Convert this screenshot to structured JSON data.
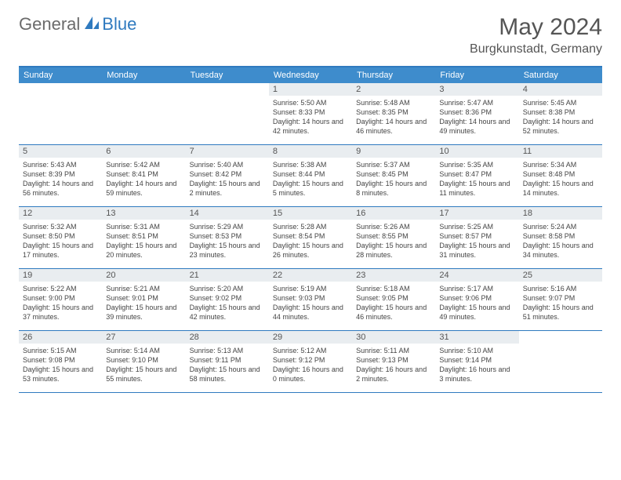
{
  "logo": {
    "part1": "General",
    "part2": "Blue"
  },
  "title": "May 2024",
  "location": "Burgkunstadt, Germany",
  "colors": {
    "header_bg": "#3e8ccc",
    "border": "#2f7abf",
    "daynum_bg": "#e9edf0",
    "text": "#555555"
  },
  "dayheads": [
    "Sunday",
    "Monday",
    "Tuesday",
    "Wednesday",
    "Thursday",
    "Friday",
    "Saturday"
  ],
  "weeks": [
    [
      {
        "n": "",
        "sr": "",
        "ss": "",
        "dl": ""
      },
      {
        "n": "",
        "sr": "",
        "ss": "",
        "dl": ""
      },
      {
        "n": "",
        "sr": "",
        "ss": "",
        "dl": ""
      },
      {
        "n": "1",
        "sr": "Sunrise: 5:50 AM",
        "ss": "Sunset: 8:33 PM",
        "dl": "Daylight: 14 hours and 42 minutes."
      },
      {
        "n": "2",
        "sr": "Sunrise: 5:48 AM",
        "ss": "Sunset: 8:35 PM",
        "dl": "Daylight: 14 hours and 46 minutes."
      },
      {
        "n": "3",
        "sr": "Sunrise: 5:47 AM",
        "ss": "Sunset: 8:36 PM",
        "dl": "Daylight: 14 hours and 49 minutes."
      },
      {
        "n": "4",
        "sr": "Sunrise: 5:45 AM",
        "ss": "Sunset: 8:38 PM",
        "dl": "Daylight: 14 hours and 52 minutes."
      }
    ],
    [
      {
        "n": "5",
        "sr": "Sunrise: 5:43 AM",
        "ss": "Sunset: 8:39 PM",
        "dl": "Daylight: 14 hours and 56 minutes."
      },
      {
        "n": "6",
        "sr": "Sunrise: 5:42 AM",
        "ss": "Sunset: 8:41 PM",
        "dl": "Daylight: 14 hours and 59 minutes."
      },
      {
        "n": "7",
        "sr": "Sunrise: 5:40 AM",
        "ss": "Sunset: 8:42 PM",
        "dl": "Daylight: 15 hours and 2 minutes."
      },
      {
        "n": "8",
        "sr": "Sunrise: 5:38 AM",
        "ss": "Sunset: 8:44 PM",
        "dl": "Daylight: 15 hours and 5 minutes."
      },
      {
        "n": "9",
        "sr": "Sunrise: 5:37 AM",
        "ss": "Sunset: 8:45 PM",
        "dl": "Daylight: 15 hours and 8 minutes."
      },
      {
        "n": "10",
        "sr": "Sunrise: 5:35 AM",
        "ss": "Sunset: 8:47 PM",
        "dl": "Daylight: 15 hours and 11 minutes."
      },
      {
        "n": "11",
        "sr": "Sunrise: 5:34 AM",
        "ss": "Sunset: 8:48 PM",
        "dl": "Daylight: 15 hours and 14 minutes."
      }
    ],
    [
      {
        "n": "12",
        "sr": "Sunrise: 5:32 AM",
        "ss": "Sunset: 8:50 PM",
        "dl": "Daylight: 15 hours and 17 minutes."
      },
      {
        "n": "13",
        "sr": "Sunrise: 5:31 AM",
        "ss": "Sunset: 8:51 PM",
        "dl": "Daylight: 15 hours and 20 minutes."
      },
      {
        "n": "14",
        "sr": "Sunrise: 5:29 AM",
        "ss": "Sunset: 8:53 PM",
        "dl": "Daylight: 15 hours and 23 minutes."
      },
      {
        "n": "15",
        "sr": "Sunrise: 5:28 AM",
        "ss": "Sunset: 8:54 PM",
        "dl": "Daylight: 15 hours and 26 minutes."
      },
      {
        "n": "16",
        "sr": "Sunrise: 5:26 AM",
        "ss": "Sunset: 8:55 PM",
        "dl": "Daylight: 15 hours and 28 minutes."
      },
      {
        "n": "17",
        "sr": "Sunrise: 5:25 AM",
        "ss": "Sunset: 8:57 PM",
        "dl": "Daylight: 15 hours and 31 minutes."
      },
      {
        "n": "18",
        "sr": "Sunrise: 5:24 AM",
        "ss": "Sunset: 8:58 PM",
        "dl": "Daylight: 15 hours and 34 minutes."
      }
    ],
    [
      {
        "n": "19",
        "sr": "Sunrise: 5:22 AM",
        "ss": "Sunset: 9:00 PM",
        "dl": "Daylight: 15 hours and 37 minutes."
      },
      {
        "n": "20",
        "sr": "Sunrise: 5:21 AM",
        "ss": "Sunset: 9:01 PM",
        "dl": "Daylight: 15 hours and 39 minutes."
      },
      {
        "n": "21",
        "sr": "Sunrise: 5:20 AM",
        "ss": "Sunset: 9:02 PM",
        "dl": "Daylight: 15 hours and 42 minutes."
      },
      {
        "n": "22",
        "sr": "Sunrise: 5:19 AM",
        "ss": "Sunset: 9:03 PM",
        "dl": "Daylight: 15 hours and 44 minutes."
      },
      {
        "n": "23",
        "sr": "Sunrise: 5:18 AM",
        "ss": "Sunset: 9:05 PM",
        "dl": "Daylight: 15 hours and 46 minutes."
      },
      {
        "n": "24",
        "sr": "Sunrise: 5:17 AM",
        "ss": "Sunset: 9:06 PM",
        "dl": "Daylight: 15 hours and 49 minutes."
      },
      {
        "n": "25",
        "sr": "Sunrise: 5:16 AM",
        "ss": "Sunset: 9:07 PM",
        "dl": "Daylight: 15 hours and 51 minutes."
      }
    ],
    [
      {
        "n": "26",
        "sr": "Sunrise: 5:15 AM",
        "ss": "Sunset: 9:08 PM",
        "dl": "Daylight: 15 hours and 53 minutes."
      },
      {
        "n": "27",
        "sr": "Sunrise: 5:14 AM",
        "ss": "Sunset: 9:10 PM",
        "dl": "Daylight: 15 hours and 55 minutes."
      },
      {
        "n": "28",
        "sr": "Sunrise: 5:13 AM",
        "ss": "Sunset: 9:11 PM",
        "dl": "Daylight: 15 hours and 58 minutes."
      },
      {
        "n": "29",
        "sr": "Sunrise: 5:12 AM",
        "ss": "Sunset: 9:12 PM",
        "dl": "Daylight: 16 hours and 0 minutes."
      },
      {
        "n": "30",
        "sr": "Sunrise: 5:11 AM",
        "ss": "Sunset: 9:13 PM",
        "dl": "Daylight: 16 hours and 2 minutes."
      },
      {
        "n": "31",
        "sr": "Sunrise: 5:10 AM",
        "ss": "Sunset: 9:14 PM",
        "dl": "Daylight: 16 hours and 3 minutes."
      },
      {
        "n": "",
        "sr": "",
        "ss": "",
        "dl": ""
      }
    ]
  ]
}
